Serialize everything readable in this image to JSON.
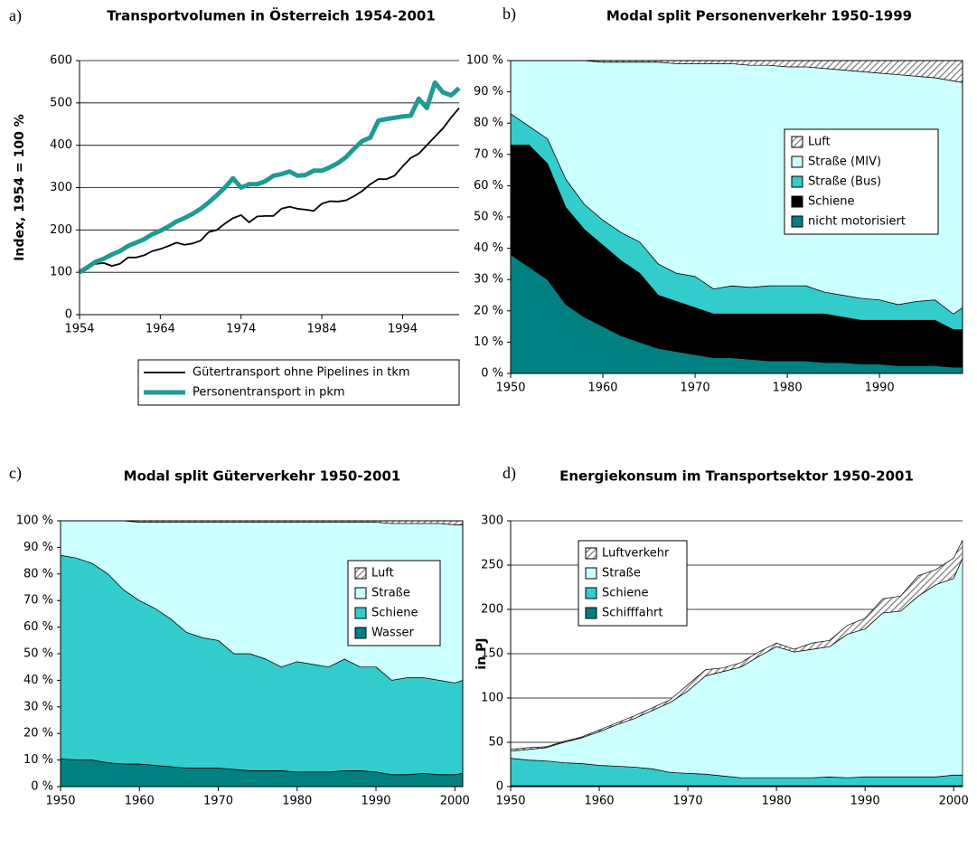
{
  "chart_data": [
    {
      "type": "line",
      "label": "a)",
      "title": "Transportvolumen in Österreich 1954-2001",
      "ylabel": "Index, 1954 = 100 %",
      "x": [
        1954,
        1955,
        1956,
        1957,
        1958,
        1959,
        1960,
        1961,
        1962,
        1963,
        1964,
        1965,
        1966,
        1967,
        1968,
        1969,
        1970,
        1971,
        1972,
        1973,
        1974,
        1975,
        1976,
        1977,
        1978,
        1979,
        1980,
        1981,
        1982,
        1983,
        1984,
        1985,
        1986,
        1987,
        1988,
        1989,
        1990,
        1991,
        1992,
        1993,
        1994,
        1995,
        1996,
        1997,
        1998,
        1999,
        2000,
        2001
      ],
      "series": [
        {
          "name": "Gütertransport ohne Pipelines in tkm",
          "color": "#000000",
          "values": [
            100,
            115,
            120,
            122,
            115,
            120,
            135,
            135,
            140,
            150,
            155,
            162,
            170,
            165,
            168,
            175,
            195,
            200,
            215,
            228,
            235,
            218,
            232,
            233,
            233,
            250,
            255,
            250,
            248,
            245,
            262,
            268,
            267,
            270,
            280,
            292,
            308,
            320,
            320,
            328,
            350,
            370,
            380,
            400,
            420,
            440,
            465,
            488
          ]
        },
        {
          "name": "Personentransport in pkm",
          "color": "#1f9a94",
          "values": [
            100,
            112,
            125,
            132,
            142,
            150,
            162,
            170,
            178,
            190,
            198,
            208,
            220,
            228,
            238,
            250,
            265,
            282,
            300,
            322,
            300,
            308,
            308,
            315,
            328,
            332,
            338,
            328,
            330,
            340,
            340,
            348,
            358,
            372,
            392,
            410,
            418,
            458,
            462,
            465,
            468,
            470,
            510,
            488,
            548,
            525,
            518,
            535
          ]
        }
      ],
      "xlim": [
        1954,
        2001
      ],
      "xticks": [
        1954,
        1964,
        1974,
        1984,
        1994
      ],
      "ylim": [
        0,
        600
      ],
      "yticks": [
        0,
        100,
        200,
        300,
        400,
        500,
        600
      ],
      "grid": true,
      "legend": "below"
    },
    {
      "type": "stacked_area",
      "label": "b)",
      "title": "Modal split Personenverkehr 1950-1999",
      "x": [
        1950,
        1952,
        1954,
        1956,
        1958,
        1960,
        1962,
        1964,
        1966,
        1968,
        1970,
        1972,
        1974,
        1976,
        1978,
        1980,
        1982,
        1984,
        1986,
        1988,
        1990,
        1992,
        1994,
        1996,
        1998,
        1999
      ],
      "series": [
        {
          "name": "nicht motorisiert",
          "color": "#008080",
          "values": [
            38,
            34,
            30,
            22,
            18,
            15,
            12,
            10,
            8,
            7,
            6,
            5,
            5,
            4.5,
            4,
            4,
            4,
            3.5,
            3.5,
            3,
            3,
            2.5,
            2.5,
            2.5,
            2,
            2
          ]
        },
        {
          "name": "Schiene",
          "color": "#000000",
          "values": [
            35,
            39,
            37,
            31,
            28,
            26,
            24,
            22,
            17,
            16,
            15,
            14,
            14,
            14.5,
            15,
            15,
            15,
            15.5,
            14.5,
            14,
            14,
            14.5,
            14.5,
            14.5,
            12,
            12
          ]
        },
        {
          "name": "Straße (Bus)",
          "color": "#33cccc",
          "values": [
            10,
            6,
            8,
            9,
            8,
            8,
            9,
            10,
            10,
            9,
            10,
            8,
            9,
            8.5,
            9,
            9,
            9,
            7,
            7,
            7,
            6.5,
            5,
            6,
            6.5,
            5,
            7
          ]
        },
        {
          "name": "Straße (MIV)",
          "color": "#ccffff",
          "values": [
            17,
            21,
            25,
            38,
            46,
            50.5,
            54.5,
            57.5,
            64.5,
            67,
            68,
            72,
            71,
            71,
            70.5,
            70,
            70,
            71.5,
            72,
            72.5,
            72.5,
            73.5,
            72,
            71,
            74.5,
            72
          ]
        },
        {
          "name": "Luft",
          "color": "#808080",
          "hatch": true,
          "values": [
            0,
            0,
            0,
            0,
            0,
            0.5,
            0.5,
            0.5,
            0.5,
            1,
            1,
            1,
            1,
            1.5,
            1.5,
            2,
            2,
            2.5,
            3,
            3.5,
            4,
            4.5,
            5,
            5.5,
            6.5,
            7
          ]
        }
      ],
      "xlim": [
        1950,
        1999
      ],
      "xticks": [
        1950,
        1960,
        1970,
        1980,
        1990
      ],
      "ylim": [
        0,
        100
      ],
      "yticks": [
        {
          "value": 0,
          "label": "0 %"
        },
        {
          "value": 10,
          "label": "10 %"
        },
        {
          "value": 20,
          "label": "20 %"
        },
        {
          "value": 30,
          "label": "30 %"
        },
        {
          "value": 40,
          "label": "40 %"
        },
        {
          "value": 50,
          "label": "50 %"
        },
        {
          "value": 60,
          "label": "60 %"
        },
        {
          "value": 70,
          "label": "70 %"
        },
        {
          "value": 80,
          "label": "80 %"
        },
        {
          "value": 90,
          "label": "90 %"
        },
        {
          "value": 100,
          "label": "100 %"
        }
      ],
      "grid": false,
      "legend": "center right"
    },
    {
      "type": "stacked_area",
      "label": "c)",
      "title": "Modal split Güterverkehr 1950-2001",
      "x": [
        1950,
        1952,
        1954,
        1956,
        1958,
        1960,
        1962,
        1964,
        1966,
        1968,
        1970,
        1972,
        1974,
        1976,
        1978,
        1980,
        1982,
        1984,
        1986,
        1988,
        1990,
        1992,
        1994,
        1996,
        1998,
        2000,
        2001
      ],
      "series": [
        {
          "name": "Wasser",
          "color": "#008080",
          "values": [
            10.5,
            10,
            10,
            9,
            8.5,
            8.5,
            8,
            7.5,
            7,
            7,
            7,
            6.5,
            6,
            6,
            6,
            5.5,
            5.5,
            5.5,
            6,
            6,
            5.5,
            4.5,
            4.5,
            5,
            4.5,
            4.5,
            5
          ]
        },
        {
          "name": "Schiene",
          "color": "#33cccc",
          "values": [
            76.5,
            76,
            74,
            71,
            65.5,
            61.5,
            59,
            55.5,
            51,
            49,
            48,
            43.5,
            44,
            42,
            39,
            41.5,
            40.5,
            39.5,
            42,
            39,
            39.5,
            35.5,
            36.5,
            36,
            35.5,
            34.5,
            35
          ]
        },
        {
          "name": "Straße",
          "color": "#ccffff",
          "values": [
            13,
            14,
            16,
            20,
            26,
            29.5,
            32.5,
            36.5,
            41.5,
            43.5,
            44.5,
            49.5,
            49.5,
            51.5,
            54.5,
            52.5,
            53.5,
            54.5,
            51.5,
            54.5,
            54.5,
            59,
            58,
            58,
            59,
            59.5,
            58.5
          ]
        },
        {
          "name": "Luft",
          "color": "#808080",
          "hatch": true,
          "values": [
            0,
            0,
            0,
            0,
            0,
            0.5,
            0.5,
            0.5,
            0.5,
            0.5,
            0.5,
            0.5,
            0.5,
            0.5,
            0.5,
            0.5,
            0.5,
            0.5,
            0.5,
            0.5,
            0.5,
            1,
            1,
            1,
            1,
            1.5,
            1.5
          ]
        }
      ],
      "xlim": [
        1950,
        2001
      ],
      "xticks": [
        1950,
        1960,
        1970,
        1980,
        1990,
        2000
      ],
      "ylim": [
        0,
        100
      ],
      "yticks": [
        {
          "value": 0,
          "label": "0 %"
        },
        {
          "value": 10,
          "label": "10 %"
        },
        {
          "value": 20,
          "label": "20 %"
        },
        {
          "value": 30,
          "label": "30 %"
        },
        {
          "value": 40,
          "label": "40 %"
        },
        {
          "value": 50,
          "label": "50 %"
        },
        {
          "value": 60,
          "label": "60 %"
        },
        {
          "value": 70,
          "label": "70 %"
        },
        {
          "value": 80,
          "label": "80 %"
        },
        {
          "value": 90,
          "label": "90 %"
        },
        {
          "value": 100,
          "label": "100 %"
        }
      ],
      "grid": false,
      "legend": "upper right"
    },
    {
      "type": "stacked_area",
      "label": "d)",
      "title": "Energiekonsum im Transportsektor 1950-2001",
      "ylabel": "in PJ",
      "x": [
        1950,
        1952,
        1954,
        1956,
        1958,
        1960,
        1962,
        1964,
        1966,
        1968,
        1970,
        1972,
        1974,
        1976,
        1978,
        1980,
        1982,
        1984,
        1986,
        1988,
        1990,
        1992,
        1994,
        1996,
        1998,
        2000,
        2001
      ],
      "series": [
        {
          "name": "Schifffahrt",
          "color": "#008080",
          "values": [
            1,
            1,
            1,
            1,
            1,
            1,
            1,
            1,
            1,
            1,
            1,
            1,
            1,
            1,
            1,
            1,
            1,
            1,
            1,
            1,
            1,
            1,
            1,
            1,
            1,
            1,
            1
          ]
        },
        {
          "name": "Schiene",
          "color": "#33cccc",
          "values": [
            31,
            29,
            28,
            26,
            25,
            23,
            22,
            21,
            19,
            15,
            14,
            13,
            11,
            9,
            9,
            9,
            9,
            9,
            10,
            9,
            10,
            10,
            10,
            10,
            10,
            12,
            12
          ]
        },
        {
          "name": "Straße",
          "color": "#ccffff",
          "values": [
            8,
            12,
            15,
            23,
            29,
            38,
            47,
            55,
            66,
            79,
            93,
            111,
            118,
            125,
            137,
            148,
            142,
            145,
            147,
            162,
            167,
            185,
            187,
            204,
            217,
            222,
            245
          ]
        },
        {
          "name": "Luftverkehr",
          "color": "#808080",
          "hatch": true,
          "values": [
            2,
            2,
            1,
            1,
            1,
            2,
            2,
            3,
            3,
            3,
            7,
            7,
            4,
            5,
            5,
            4,
            3,
            7,
            7,
            10,
            12,
            16,
            17,
            23,
            17,
            23,
            20
          ]
        }
      ],
      "xlim": [
        1950,
        2001
      ],
      "xticks": [
        1950,
        1960,
        1970,
        1980,
        1990,
        2000
      ],
      "ylim": [
        0,
        300
      ],
      "yticks": [
        0,
        50,
        100,
        150,
        200,
        250,
        300
      ],
      "grid": true,
      "legend": "upper left"
    }
  ]
}
